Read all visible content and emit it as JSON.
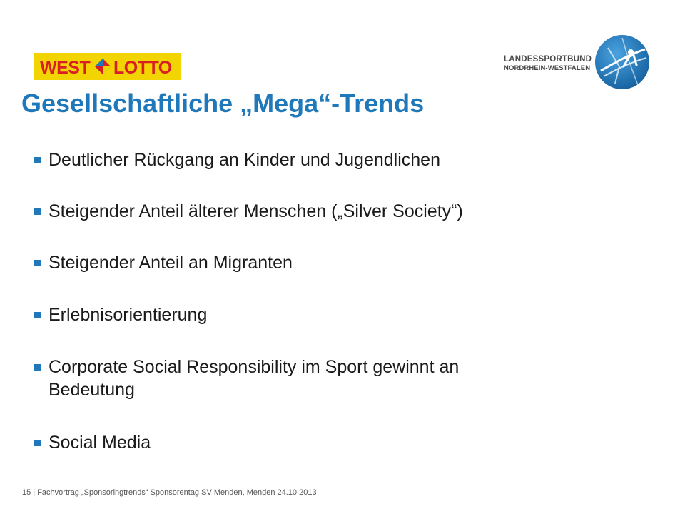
{
  "logos": {
    "westlotto": {
      "text": "WEST LOTTO",
      "background": "#f2d400",
      "text_color": "#d81f26"
    },
    "lsb": {
      "line1": "LANDESSPORTBUND",
      "line2": "NORDRHEIN-WESTFALEN",
      "color": "#1f78b9"
    }
  },
  "title": "Gesellschaftliche „Mega“-Trends",
  "bullets": [
    {
      "text": "Deutlicher Rückgang an Kinder und Jugendlichen"
    },
    {
      "text": "Steigender Anteil älterer Menschen („Silver Society“)"
    },
    {
      "text": "Steigender Anteil an Migranten"
    },
    {
      "text": "Erlebnisorientierung"
    },
    {
      "text": "Corporate Social Responsibility im Sport gewinnt an",
      "continuation": "Bedeutung"
    },
    {
      "text": "Social Media"
    }
  ],
  "footer": "15 | Fachvortrag „Sponsoringtrends“ Sponsorentag SV Menden, Menden 24.10.2013",
  "colors": {
    "accent": "#1f78b9",
    "text": "#1a1a1a",
    "bullet_marker": "#1f78b9"
  }
}
